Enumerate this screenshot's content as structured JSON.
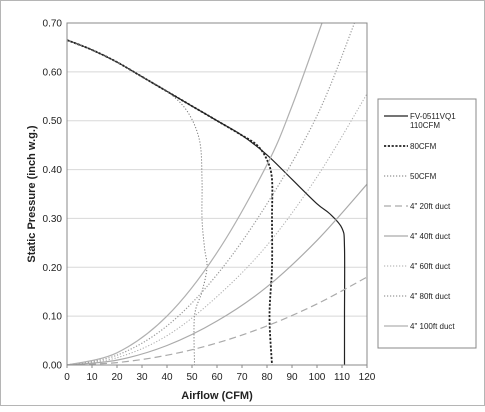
{
  "chart_data": {
    "type": "line",
    "title": "",
    "xlabel": "Airflow (CFM)",
    "ylabel": "Static Pressure (inch w.g.)",
    "xlim": [
      0,
      120
    ],
    "ylim": [
      0,
      0.7
    ],
    "x_ticks": [
      "0",
      "10",
      "20",
      "30",
      "40",
      "50",
      "60",
      "70",
      "80",
      "90",
      "100",
      "110",
      "120"
    ],
    "y_ticks": [
      "0.00",
      "0.10",
      "0.20",
      "0.30",
      "0.40",
      "0.50",
      "0.60",
      "0.70"
    ],
    "grid": true,
    "legend_position": "right",
    "series": [
      {
        "name": "FV-0511VQ1 110CFM",
        "style": "solid",
        "color": "#222222",
        "width": 1.2,
        "points": [
          [
            0,
            0.665
          ],
          [
            10,
            0.645
          ],
          [
            20,
            0.62
          ],
          [
            30,
            0.59
          ],
          [
            40,
            0.56
          ],
          [
            50,
            0.53
          ],
          [
            60,
            0.5
          ],
          [
            70,
            0.47
          ],
          [
            80,
            0.43
          ],
          [
            90,
            0.38
          ],
          [
            100,
            0.33
          ],
          [
            105,
            0.31
          ],
          [
            110,
            0.28
          ],
          [
            111,
            0.24
          ],
          [
            111,
            0.1
          ],
          [
            111,
            0
          ]
        ]
      },
      {
        "name": "80CFM",
        "style": "dashed-bold",
        "color": "#222222",
        "width": 1.8,
        "points": [
          [
            0,
            0.665
          ],
          [
            10,
            0.645
          ],
          [
            20,
            0.62
          ],
          [
            30,
            0.59
          ],
          [
            40,
            0.56
          ],
          [
            50,
            0.53
          ],
          [
            60,
            0.5
          ],
          [
            70,
            0.47
          ],
          [
            76,
            0.45
          ],
          [
            80,
            0.42
          ],
          [
            82,
            0.38
          ],
          [
            82,
            0.3
          ],
          [
            82,
            0.2
          ],
          [
            81,
            0.1
          ],
          [
            82,
            0
          ]
        ]
      },
      {
        "name": "50CFM",
        "style": "dotted",
        "color": "#777777",
        "width": 1.0,
        "points": [
          [
            0,
            0.665
          ],
          [
            10,
            0.645
          ],
          [
            20,
            0.62
          ],
          [
            30,
            0.59
          ],
          [
            40,
            0.56
          ],
          [
            48,
            0.52
          ],
          [
            53,
            0.46
          ],
          [
            54,
            0.38
          ],
          [
            54,
            0.3
          ],
          [
            55,
            0.24
          ],
          [
            56,
            0.2
          ],
          [
            54,
            0.15
          ],
          [
            51,
            0.1
          ],
          [
            51,
            0
          ]
        ]
      },
      {
        "name": "4\" 20ft duct",
        "style": "long-dash",
        "color": "#aaaaaa",
        "width": 1.2,
        "points": [
          [
            0,
            0
          ],
          [
            20,
            0.005
          ],
          [
            40,
            0.02
          ],
          [
            60,
            0.045
          ],
          [
            80,
            0.08
          ],
          [
            100,
            0.125
          ],
          [
            120,
            0.18
          ]
        ]
      },
      {
        "name": "4\" 40ft duct",
        "style": "solid",
        "color": "#aaaaaa",
        "width": 1.2,
        "points": [
          [
            0,
            0
          ],
          [
            20,
            0.01
          ],
          [
            40,
            0.04
          ],
          [
            60,
            0.09
          ],
          [
            80,
            0.16
          ],
          [
            100,
            0.255
          ],
          [
            120,
            0.37
          ]
        ]
      },
      {
        "name": "4\" 60ft duct",
        "style": "dotted",
        "color": "#aaaaaa",
        "width": 1.0,
        "points": [
          [
            0,
            0
          ],
          [
            20,
            0.015
          ],
          [
            40,
            0.06
          ],
          [
            60,
            0.14
          ],
          [
            80,
            0.245
          ],
          [
            100,
            0.385
          ],
          [
            120,
            0.555
          ]
        ]
      },
      {
        "name": "4\" 80ft duct",
        "style": "dotted",
        "color": "#999999",
        "width": 1.2,
        "points": [
          [
            0,
            0
          ],
          [
            20,
            0.02
          ],
          [
            40,
            0.08
          ],
          [
            60,
            0.185
          ],
          [
            80,
            0.33
          ],
          [
            100,
            0.51
          ],
          [
            115,
            0.7
          ]
        ]
      },
      {
        "name": "4\" 100ft duct",
        "style": "solid",
        "color": "#b0b0b0",
        "width": 1.2,
        "points": [
          [
            0,
            0
          ],
          [
            20,
            0.025
          ],
          [
            40,
            0.1
          ],
          [
            60,
            0.23
          ],
          [
            80,
            0.41
          ],
          [
            90,
            0.53
          ],
          [
            102,
            0.7
          ]
        ]
      }
    ]
  },
  "legend": {
    "items": [
      {
        "line1": "FV-0511VQ1",
        "line2": "110CFM"
      },
      {
        "line1": "80CFM",
        "line2": ""
      },
      {
        "line1": "50CFM",
        "line2": ""
      },
      {
        "line1": "4\" 20ft duct",
        "line2": ""
      },
      {
        "line1": "4\" 40ft duct",
        "line2": ""
      },
      {
        "line1": "4\" 60ft duct",
        "line2": ""
      },
      {
        "line1": "4\" 80ft duct",
        "line2": ""
      },
      {
        "line1": "4\" 100ft duct",
        "line2": ""
      }
    ]
  }
}
